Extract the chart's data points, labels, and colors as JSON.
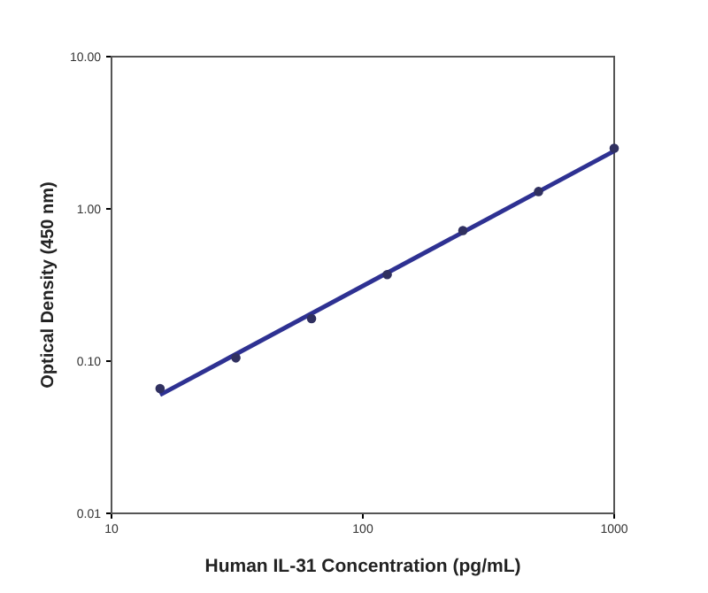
{
  "chart_data": {
    "type": "scatter",
    "xlabel": "Human IL-31 Concentration (pg/mL)",
    "ylabel": "Optical Density (450 nm)",
    "log": "xy",
    "grid": false,
    "xlim": [
      10,
      1000
    ],
    "xticks": [
      10,
      100,
      1000
    ],
    "ylim": [
      0.01,
      10
    ],
    "yticks": [
      {
        "value": 0.01,
        "label": "0.01"
      },
      {
        "value": 0.1,
        "label": "0.10"
      },
      {
        "value": 1,
        "label": "1.00"
      },
      {
        "value": 10,
        "label": "10.00"
      }
    ],
    "series": [
      {
        "type": "line",
        "color": "#2e3192",
        "x": [
          15.6,
          1000
        ],
        "values": [
          0.06,
          2.4
        ],
        "line_style": "solid"
      },
      {
        "marker": "circle",
        "color": "#303060",
        "x": [
          15.6,
          31.25,
          62.5,
          125,
          250,
          500,
          1000
        ],
        "values": [
          0.066,
          0.105,
          0.19,
          0.37,
          0.72,
          1.3,
          2.5
        ]
      }
    ]
  }
}
